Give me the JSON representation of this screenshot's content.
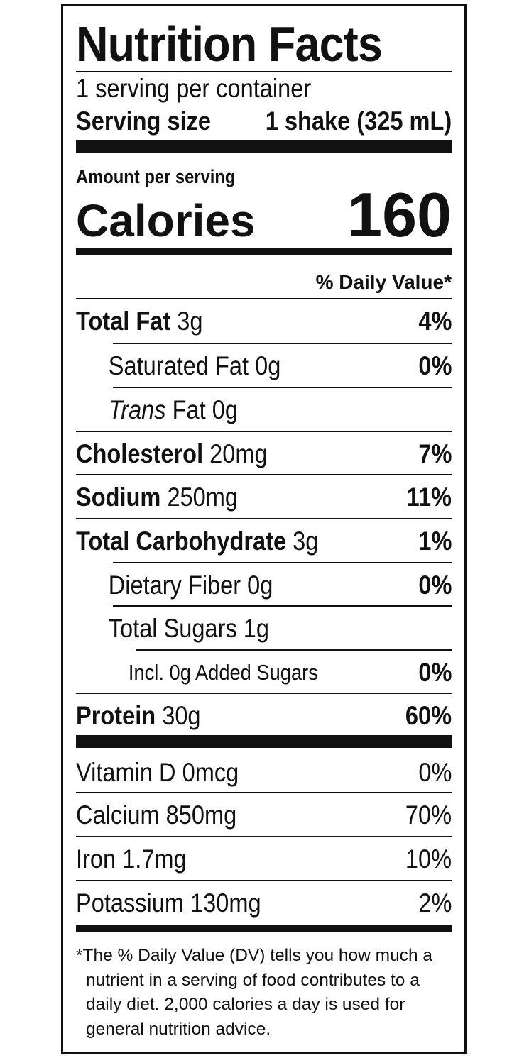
{
  "label": {
    "title": "Nutrition Facts",
    "servings_per_container": "1 serving per container",
    "serving_size_label": "Serving size",
    "serving_size_value": "1 shake (325 mL)",
    "amount_per_serving": "Amount per serving",
    "calories_label": "Calories",
    "calories_value": "160",
    "daily_value_header": "% Daily Value*"
  },
  "nutrients": {
    "total_fat": {
      "name": "Total Fat",
      "amount": "3g",
      "dv": "4%"
    },
    "saturated_fat": {
      "name": "Saturated Fat",
      "amount": "0g",
      "dv": "0%"
    },
    "trans_fat": {
      "name_italic": "Trans",
      "name": "Fat",
      "amount": "0g"
    },
    "cholesterol": {
      "name": "Cholesterol",
      "amount": "20mg",
      "dv": "7%"
    },
    "sodium": {
      "name": "Sodium",
      "amount": "250mg",
      "dv": "11%"
    },
    "total_carbohydrate": {
      "name": "Total Carbohydrate",
      "amount": "3g",
      "dv": "1%"
    },
    "dietary_fiber": {
      "name": "Dietary Fiber",
      "amount": "0g",
      "dv": "0%"
    },
    "total_sugars": {
      "name": "Total Sugars",
      "amount": "1g"
    },
    "added_sugars": {
      "text": "Incl. 0g Added Sugars",
      "dv": "0%"
    },
    "protein": {
      "name": "Protein",
      "amount": "30g",
      "dv": "60%"
    }
  },
  "vitamins": [
    {
      "name": "Vitamin D",
      "amount": "0mcg",
      "dv": "0%"
    },
    {
      "name": "Calcium",
      "amount": "850mg",
      "dv": "70%"
    },
    {
      "name": "Iron",
      "amount": "1.7mg",
      "dv": "10%"
    },
    {
      "name": "Potassium",
      "amount": "130mg",
      "dv": "2%"
    }
  ],
  "footnote": {
    "line1": "*The % Daily Value (DV) tells you how much a",
    "line2": "nutrient in a serving of food contributes to a",
    "line3": "daily diet. 2,000 calories a day is used for",
    "line4": "general nutrition advice."
  }
}
